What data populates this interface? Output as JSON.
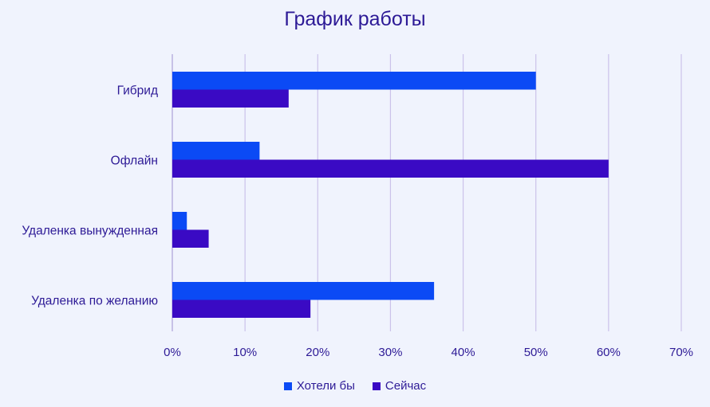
{
  "colors": {
    "background": "#f0f3fd",
    "text": "#2d1a96",
    "gridline": "#cbc2ea",
    "axis": "#b9b2e0",
    "series_1": "#0b4af5",
    "series_2": "#3a0ac4"
  },
  "chart_data": {
    "type": "bar",
    "orientation": "horizontal",
    "title": "График работы",
    "xlabel": "",
    "ylabel": "",
    "categories": [
      "Гибрид",
      "Офлайн",
      "Удаленка вынужденная",
      "Удаленка по желанию"
    ],
    "series": [
      {
        "name": "Хотели бы",
        "values": [
          50,
          12,
          2,
          36
        ]
      },
      {
        "name": "Сейчас",
        "values": [
          16,
          60,
          5,
          19
        ]
      }
    ],
    "xlim": [
      0,
      70
    ],
    "xticks": [
      0,
      10,
      20,
      30,
      40,
      50,
      60,
      70
    ],
    "tick_suffix": "%",
    "grid": true,
    "legend_position": "bottom-center"
  }
}
